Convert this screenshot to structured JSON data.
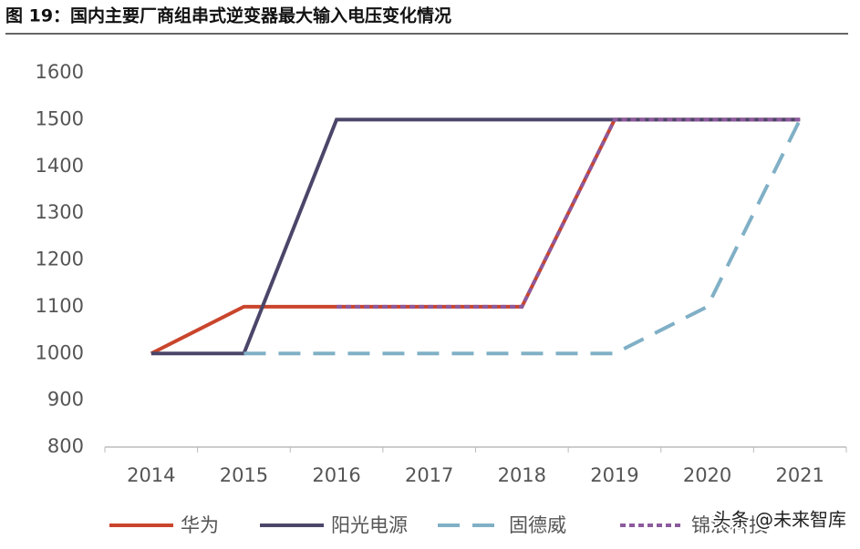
{
  "chart_data": {
    "type": "line",
    "title": "图 19：国内主要厂商组串式逆变器最大输入电压变化情况",
    "categories": [
      "2014",
      "2015",
      "2016",
      "2017",
      "2018",
      "2019",
      "2020",
      "2021"
    ],
    "series": [
      {
        "name": "华为",
        "color": "#c9452c",
        "dash": "solid",
        "values": [
          1000,
          1100,
          1100,
          1100,
          1100,
          1500,
          1500,
          1500
        ]
      },
      {
        "name": "阳光电源",
        "color": "#4b4669",
        "dash": "solid",
        "values": [
          1000,
          1000,
          1500,
          1500,
          1500,
          1500,
          1500,
          1500
        ]
      },
      {
        "name": "固德威",
        "color": "#80b0c6",
        "dash": "dashed",
        "values": [
          null,
          1000,
          1000,
          1000,
          1000,
          1000,
          1100,
          1500
        ]
      },
      {
        "name": "锦浪科技",
        "color": "#8c5a9e",
        "dash": "dotted",
        "values": [
          null,
          null,
          1100,
          1100,
          1100,
          1500,
          1500,
          1500
        ]
      }
    ],
    "ylim": [
      800,
      1600
    ],
    "yticks": [
      800,
      900,
      1000,
      1100,
      1200,
      1300,
      1400,
      1500,
      1600
    ],
    "grid": false,
    "legend": "bottom"
  },
  "watermark": "头条 @未来智库"
}
